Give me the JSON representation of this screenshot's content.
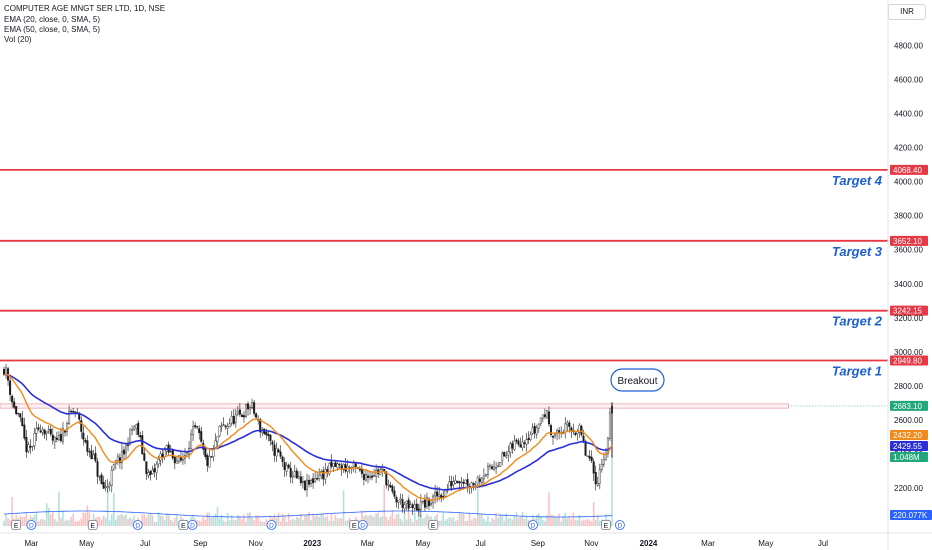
{
  "header": {
    "symbol_line": "COMPUTER AGE MNGT SER LTD, 1D, NSE",
    "indicators": [
      "EMA (20, close, 0, SMA, 5)",
      "EMA (50, close, 0, SMA, 5)",
      "Vol (20)"
    ]
  },
  "currency": "INR",
  "colors": {
    "target_line": "#e53945",
    "target_text": "#1e5fd0",
    "ema20": "#f08a1c",
    "ema50": "#2a2fd6",
    "up_candle": "#1a1a1a",
    "down_candle": "#1a1a1a",
    "volume_ema": "#2962ff",
    "breakout_box": "#e8a0a4",
    "last_price": "#22a67b"
  },
  "chart_data": {
    "type": "candlestick",
    "ylim": [
      1990,
      4960
    ],
    "y_ticks": [
      2200,
      2400,
      2600,
      2800,
      3000,
      3200,
      3400,
      3600,
      3800,
      4000,
      4200,
      4400,
      4600,
      4800
    ],
    "y_tick_labels": [
      "2200.00",
      "2400.00",
      "2600.00",
      "2800.00",
      "3000.00",
      "3200.00",
      "3400.00",
      "3600.00",
      "3800.00",
      "4000.00",
      "4200.00",
      "4400.00",
      "4600.00",
      "4800.00"
    ],
    "x_ticks": [
      {
        "label": "Mar",
        "t": 0.045
      },
      {
        "label": "May",
        "t": 0.136
      },
      {
        "label": "Jul",
        "t": 0.232
      },
      {
        "label": "Sep",
        "t": 0.323
      },
      {
        "label": "Nov",
        "t": 0.414
      },
      {
        "label": "2023",
        "t": 0.507
      },
      {
        "label": "Mar",
        "t": 0.598
      },
      {
        "label": "May",
        "t": 0.689
      },
      {
        "label": "Jul",
        "t": 0.784
      },
      {
        "label": "Sep",
        "t": 0.878
      },
      {
        "label": "Nov",
        "t": 0.966
      },
      {
        "label": "2024",
        "t": 1.06
      },
      {
        "label": "Mar",
        "t": 1.158
      },
      {
        "label": "May",
        "t": 1.253
      },
      {
        "label": "Jul",
        "t": 1.347
      }
    ],
    "targets": [
      {
        "label": "Target 1",
        "price": 2949.8,
        "price_label": "2949.80"
      },
      {
        "label": "Target 2",
        "price": 3242.15,
        "price_label": "3242.15"
      },
      {
        "label": "Target 3",
        "price": 3652.1,
        "price_label": "3652.10"
      },
      {
        "label": "Target 4",
        "price": 4068.4,
        "price_label": "4068.40"
      }
    ],
    "breakout": {
      "label": "Breakout",
      "price_low": 2670,
      "price_high": 2695,
      "t_end": 1.29
    },
    "last_price": {
      "price": 2683.1,
      "label": "2683.10"
    },
    "ema20_last": {
      "price": 2432.2,
      "label": "2432.20"
    },
    "ema50_last": {
      "price": 2429.55,
      "label": "2429.55"
    },
    "volume_last": {
      "label": "1.048M"
    },
    "volume_ema_last": {
      "label": "220.077K"
    },
    "price_path": [
      [
        0.0,
        2900
      ],
      [
        0.02,
        2650
      ],
      [
        0.04,
        2420
      ],
      [
        0.06,
        2560
      ],
      [
        0.085,
        2470
      ],
      [
        0.115,
        2650
      ],
      [
        0.14,
        2420
      ],
      [
        0.165,
        2200
      ],
      [
        0.19,
        2370
      ],
      [
        0.215,
        2560
      ],
      [
        0.24,
        2270
      ],
      [
        0.265,
        2420
      ],
      [
        0.29,
        2360
      ],
      [
        0.315,
        2540
      ],
      [
        0.335,
        2350
      ],
      [
        0.36,
        2560
      ],
      [
        0.385,
        2620
      ],
      [
        0.405,
        2680
      ],
      [
        0.425,
        2540
      ],
      [
        0.445,
        2420
      ],
      [
        0.47,
        2290
      ],
      [
        0.495,
        2210
      ],
      [
        0.52,
        2280
      ],
      [
        0.545,
        2330
      ],
      [
        0.57,
        2320
      ],
      [
        0.595,
        2280
      ],
      [
        0.62,
        2300
      ],
      [
        0.645,
        2130
      ],
      [
        0.67,
        2080
      ],
      [
        0.695,
        2110
      ],
      [
        0.72,
        2170
      ],
      [
        0.745,
        2260
      ],
      [
        0.77,
        2230
      ],
      [
        0.795,
        2300
      ],
      [
        0.82,
        2380
      ],
      [
        0.845,
        2470
      ],
      [
        0.87,
        2530
      ],
      [
        0.89,
        2640
      ],
      [
        0.905,
        2510
      ],
      [
        0.925,
        2550
      ],
      [
        0.945,
        2540
      ],
      [
        0.96,
        2380
      ],
      [
        0.975,
        2250
      ],
      [
        0.99,
        2420
      ],
      [
        1.0,
        2683
      ]
    ],
    "events": [
      {
        "label": "E",
        "t": 0.02
      },
      {
        "label": "D",
        "t": 0.045
      },
      {
        "label": "E",
        "t": 0.146
      },
      {
        "label": "D",
        "t": 0.22
      },
      {
        "label": "E",
        "t": 0.295
      },
      {
        "label": "D",
        "t": 0.31
      },
      {
        "label": "D",
        "t": 0.44
      },
      {
        "label": "E",
        "t": 0.576
      },
      {
        "label": "D",
        "t": 0.59
      },
      {
        "label": "E",
        "t": 0.706
      },
      {
        "label": "D",
        "t": 0.87
      },
      {
        "label": "E",
        "t": 0.99
      },
      {
        "label": "D",
        "t": 1.013
      }
    ]
  }
}
